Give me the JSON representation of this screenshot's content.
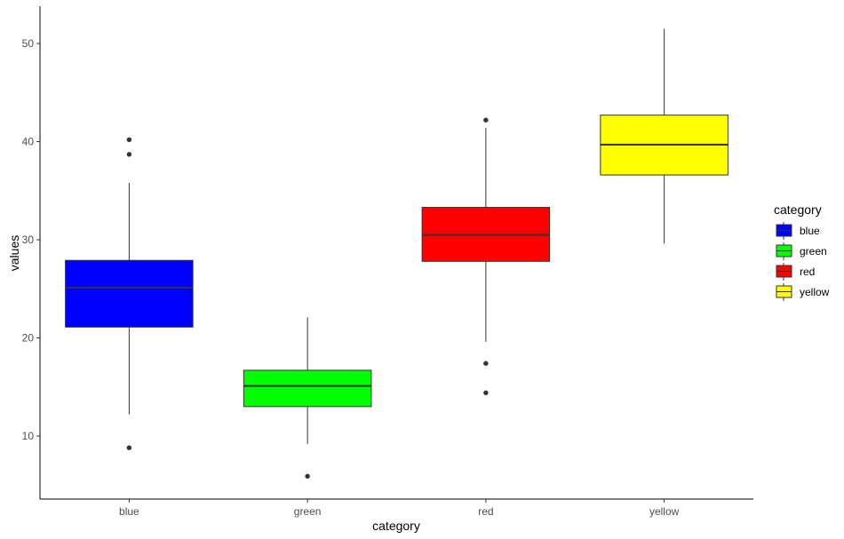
{
  "chart_data": {
    "type": "boxplot",
    "xlabel": "category",
    "ylabel": "values",
    "ylim": [
      3.5,
      54
    ],
    "yticks": [
      10,
      20,
      30,
      40,
      50
    ],
    "categories": [
      "blue",
      "green",
      "red",
      "yellow"
    ],
    "series": [
      {
        "name": "blue",
        "color": "#0000FF",
        "whisker_low": 12.2,
        "q1": 21.1,
        "median": 25.1,
        "q3": 27.9,
        "whisker_high": 35.8,
        "outliers": [
          8.8,
          38.7,
          40.2
        ]
      },
      {
        "name": "green",
        "color": "#00FF00",
        "whisker_low": 9.2,
        "q1": 13.0,
        "median": 15.1,
        "q3": 16.7,
        "whisker_high": 22.1,
        "outliers": [
          5.9
        ]
      },
      {
        "name": "red",
        "color": "#FF0000",
        "whisker_low": 19.6,
        "q1": 27.8,
        "median": 30.5,
        "q3": 33.3,
        "whisker_high": 41.4,
        "outliers": [
          14.4,
          17.4,
          42.2
        ]
      },
      {
        "name": "yellow",
        "color": "#FFFF00",
        "whisker_low": 29.6,
        "q1": 36.6,
        "median": 39.7,
        "q3": 42.7,
        "whisker_high": 51.5,
        "outliers": []
      }
    ],
    "legend": {
      "title": "category",
      "position": "right"
    },
    "grid": false
  }
}
